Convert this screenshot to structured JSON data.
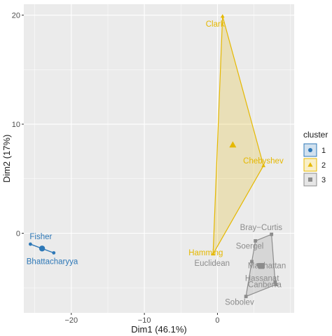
{
  "chart_data": {
    "type": "scatter",
    "xlabel": "Dim1 (46.1%)",
    "ylabel": "Dim2 (17%)",
    "xlim": [
      -26.5,
      10.5
    ],
    "ylim": [
      -7.3,
      21.0
    ],
    "x_ticks": [
      -20,
      -10,
      0
    ],
    "x_tick_labels": [
      "−20",
      "−10",
      "0"
    ],
    "y_ticks": [
      0,
      10,
      20
    ],
    "y_tick_labels": [
      "0",
      "10",
      "20"
    ],
    "grid": true,
    "legend": {
      "title": "cluster",
      "position": "right",
      "entries": [
        "1",
        "2",
        "3"
      ]
    },
    "clusters": [
      {
        "name": "1",
        "color": "#2E78B7",
        "shape": "circle",
        "points": [
          {
            "label": "Fisher",
            "x": -25.6,
            "y": -1.0
          },
          {
            "label": "Bhattacharyya",
            "x": -22.4,
            "y": -1.8
          }
        ],
        "centroid": {
          "x": -24.0,
          "y": -1.4
        }
      },
      {
        "name": "2",
        "color": "#E5B800",
        "shape": "triangle",
        "points": [
          {
            "label": "Clark",
            "x": 0.7,
            "y": 19.9
          },
          {
            "label": "Chebyshev",
            "x": 6.3,
            "y": 6.2
          },
          {
            "label": "Hamming",
            "x": -0.6,
            "y": -1.9
          }
        ],
        "centroid": {
          "x": 2.1,
          "y": 8.1
        }
      },
      {
        "name": "3",
        "color": "#8C8C8C",
        "shape": "square",
        "points": [
          {
            "label": "Bray−Curtis",
            "x": 7.4,
            "y": -0.1
          },
          {
            "label": "Soergel",
            "x": 5.2,
            "y": -0.7
          },
          {
            "label": "Euclidean",
            "x": 4.7,
            "y": -2.6
          },
          {
            "label": "Manhattan",
            "x": 5.6,
            "y": -2.9
          },
          {
            "label": "Hassanat",
            "x": 7.9,
            "y": -4.5
          },
          {
            "label": "Canberra",
            "x": 8.0,
            "y": -4.7
          },
          {
            "label": "Sobolev",
            "x": 3.9,
            "y": -5.8
          }
        ],
        "centroid": {
          "x": 6.0,
          "y": -3.0
        }
      }
    ],
    "hulls": [
      {
        "cluster": "1",
        "points": [
          "Fisher",
          "Bhattacharyya"
        ]
      },
      {
        "cluster": "2",
        "points": [
          "Clark",
          "Chebyshev",
          "Hamming"
        ]
      },
      {
        "cluster": "3",
        "points": [
          "Bray−Curtis",
          "Soergel",
          "Euclidean",
          "Sobolev",
          "Canberra",
          "Hassanat"
        ]
      }
    ]
  }
}
